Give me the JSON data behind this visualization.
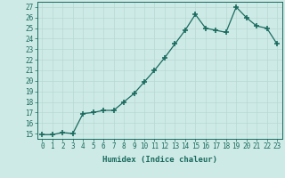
{
  "x": [
    0,
    1,
    2,
    3,
    4,
    5,
    6,
    7,
    8,
    9,
    10,
    11,
    12,
    13,
    14,
    15,
    16,
    17,
    18,
    19,
    20,
    21,
    22,
    23
  ],
  "y": [
    14.9,
    14.9,
    15.1,
    15.0,
    16.9,
    17.0,
    17.2,
    17.2,
    18.0,
    18.8,
    19.9,
    21.0,
    22.2,
    23.5,
    24.8,
    26.3,
    25.0,
    24.8,
    24.6,
    27.0,
    26.0,
    25.2,
    25.0,
    23.5
  ],
  "line_color": "#1a6b5e",
  "marker": "+",
  "marker_size": 4,
  "bg_color": "#ceeae6",
  "grid_color": "#b8d8d4",
  "xlabel": "Humidex (Indice chaleur)",
  "ylabel_ticks": [
    15,
    16,
    17,
    18,
    19,
    20,
    21,
    22,
    23,
    24,
    25,
    26,
    27
  ],
  "ylim": [
    14.5,
    27.5
  ],
  "xlim": [
    -0.5,
    23.5
  ],
  "tick_color": "#1a6b5e",
  "font_family": "monospace",
  "tick_fontsize": 5.5,
  "xlabel_fontsize": 6.5
}
